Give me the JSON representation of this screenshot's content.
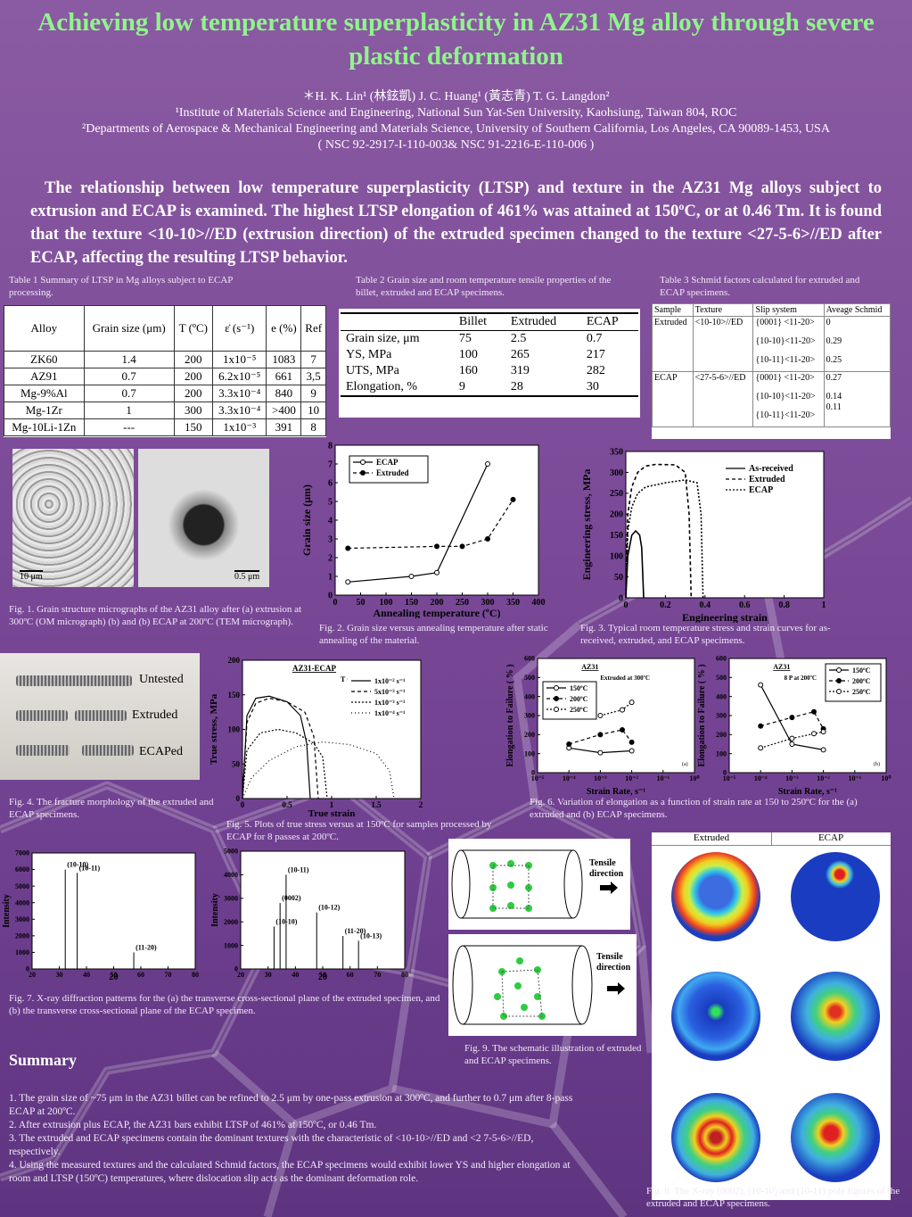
{
  "title": "Achieving low temperature superplasticity in AZ31 Mg alloy through severe plastic deformation",
  "authors": {
    "line": "＊H. K. Lin¹ (林鉉凱)   J. C. Huang¹ (黃志青)   T. G. Langdon²",
    "affil1": "¹Institute of Materials Science and Engineering, National Sun Yat-Sen University, Kaohsiung, Taiwan 804, ROC",
    "affil2": "²Departments of Aerospace & Mechanical Engineering and Materials Science, University of Southern California, Los Angeles, CA 90089-1453, USA",
    "grant": "( NSC 92-2917-I-110-003& NSC 91-2216-E-110-006 )"
  },
  "abstract": "The relationship between low temperature superplasticity (LTSP) and texture in the AZ31 Mg alloys subject to extrusion and ECAP is examined. The highest LTSP elongation of 461% was attained at 150ºC, or at 0.46 Tm. It is found that the texture <10-10>//ED (extrusion direction) of the extruded specimen changed to the texture <27-5-6>//ED after ECAP, affecting the resulting LTSP behavior.",
  "table1": {
    "caption": "Table 1  Summary of LTSP in Mg alloys subject to ECAP processing.",
    "headers": [
      "Alloy",
      "Grain size (μm)",
      "T (ºC)",
      "ε̇ (s⁻¹)",
      "e (%)",
      "Ref"
    ],
    "rows": [
      [
        "ZK60",
        "1.4",
        "200",
        "1x10⁻⁵",
        "1083",
        "7"
      ],
      [
        "AZ91",
        "0.7",
        "200",
        "6.2x10⁻⁵",
        "661",
        "3,5"
      ],
      [
        "Mg-9%Al",
        "0.7",
        "200",
        "3.3x10⁻⁴",
        "840",
        "9"
      ],
      [
        "Mg-1Zr",
        "1",
        "300",
        "3.3x10⁻⁴",
        ">400",
        "10"
      ],
      [
        "Mg-10Li-1Zn",
        "---",
        "150",
        "1x10⁻³",
        "391",
        "8"
      ]
    ]
  },
  "table2": {
    "caption": "Table 2   Grain size and room temperature tensile properties of the billet, extruded and ECAP specimens.",
    "headers": [
      "",
      "Billet",
      "Extruded",
      "ECAP"
    ],
    "rows": [
      [
        "Grain size, μm",
        "75",
        "2.5",
        "0.7"
      ],
      [
        "YS, MPa",
        "100",
        "265",
        "217"
      ],
      [
        "UTS, MPa",
        "160",
        "319",
        "282"
      ],
      [
        "Elongation, %",
        "9",
        "28",
        "30"
      ]
    ]
  },
  "table3": {
    "caption": "Table 3  Schmid factors calculated for extruded and ECAP specimens.",
    "headers": [
      "Sample",
      "Texture",
      "Slip system",
      "Aveage Schmid"
    ],
    "rows": [
      {
        "sample": "Extruded",
        "texture": "<10-10>//ED",
        "slips": [
          "{0001} <11-20>",
          "{10-10}<11-20>",
          "{10-11}<11-20>"
        ],
        "values": [
          "0",
          "0.29",
          "0.25"
        ]
      },
      {
        "sample": "ECAP",
        "texture": "<27-5-6>//ED",
        "slips": [
          "{0001} <11-20>",
          "{10-10}<11-20>",
          "{10-11}<11-20>"
        ],
        "values": [
          "0.27",
          "0.14",
          "0.11"
        ]
      }
    ]
  },
  "fig1": {
    "caption": "Fig. 1.  Grain structure micrographs of the AZ31 alloy after (a) extrusion at 300ºC (OM micrograph) (b) and (b) ECAP at 200ºC (TEM micrograph).",
    "scale_a": "10 μm",
    "scale_b": "0.5 μm"
  },
  "chart_data": [
    {
      "type": "line",
      "id": "fig2",
      "xlabel": "Annealing temperature (ºC)",
      "ylabel": "Grain size (μm)",
      "xlim": [
        0,
        400
      ],
      "ylim": [
        0,
        8
      ],
      "xticks": [
        0,
        50,
        100,
        150,
        200,
        250,
        300,
        350,
        400
      ],
      "yticks": [
        0,
        1,
        2,
        3,
        4,
        5,
        6,
        7,
        8
      ],
      "legend": "top-left",
      "series": [
        {
          "name": "ECAP",
          "x": [
            25,
            150,
            200,
            300
          ],
          "y": [
            0.7,
            1.0,
            1.2,
            7.0
          ]
        },
        {
          "name": "Extruded",
          "x": [
            25,
            200,
            250,
            300,
            350
          ],
          "y": [
            2.5,
            2.6,
            2.6,
            3.0,
            5.1
          ]
        }
      ]
    },
    {
      "type": "line",
      "id": "fig3",
      "xlabel": "Engineering strain",
      "ylabel": "Engineering stress, MPa",
      "xlim": [
        0,
        1
      ],
      "ylim": [
        0,
        350
      ],
      "xticks": [
        0,
        0.2,
        0.4,
        0.6,
        0.8,
        1
      ],
      "xtick_labels": [
        "0",
        "0.2",
        "0.4",
        "0.6",
        "0.8",
        "1"
      ],
      "yticks": [
        0,
        50,
        100,
        150,
        200,
        250,
        300,
        350
      ],
      "legend": "top-right",
      "series": [
        {
          "name": "As-received",
          "x": [
            0,
            0.01,
            0.03,
            0.05,
            0.07,
            0.08,
            0.09
          ],
          "y": [
            0,
            100,
            150,
            160,
            150,
            120,
            0
          ]
        },
        {
          "name": "Extruded",
          "x": [
            0,
            0.01,
            0.03,
            0.06,
            0.1,
            0.15,
            0.25,
            0.3,
            0.32,
            0.33
          ],
          "y": [
            0,
            200,
            265,
            300,
            315,
            319,
            318,
            300,
            200,
            0
          ]
        },
        {
          "name": "ECAP",
          "x": [
            0,
            0.01,
            0.03,
            0.06,
            0.1,
            0.2,
            0.3,
            0.36,
            0.38,
            0.39
          ],
          "y": [
            0,
            160,
            217,
            250,
            265,
            275,
            282,
            275,
            200,
            0
          ]
        }
      ]
    },
    {
      "type": "line",
      "id": "fig5",
      "title": "AZ31-ECAP",
      "annotation": "T = 150ºC",
      "xlabel": "True strain",
      "ylabel": "True stress, MPa",
      "xlim": [
        0,
        2
      ],
      "ylim": [
        0,
        200
      ],
      "xticks": [
        0,
        0.5,
        1,
        1.5,
        2
      ],
      "xtick_labels": [
        "0",
        "0.5",
        "1",
        "1.5",
        "2"
      ],
      "yticks": [
        0,
        50,
        100,
        150,
        200
      ],
      "legend": "top-right",
      "series": [
        {
          "name": "1x10⁻² s⁻¹",
          "x": [
            0,
            0.05,
            0.15,
            0.3,
            0.5,
            0.65,
            0.72,
            0.76
          ],
          "y": [
            0,
            120,
            145,
            148,
            140,
            120,
            80,
            0
          ]
        },
        {
          "name": "5x10⁻³ s⁻¹",
          "x": [
            0,
            0.05,
            0.15,
            0.3,
            0.5,
            0.7,
            0.8,
            0.85
          ],
          "y": [
            0,
            110,
            138,
            145,
            140,
            125,
            90,
            0
          ]
        },
        {
          "name": "1x10⁻³ s⁻¹",
          "x": [
            0,
            0.05,
            0.2,
            0.4,
            0.6,
            0.8,
            0.9,
            0.95
          ],
          "y": [
            0,
            70,
            95,
            100,
            95,
            80,
            60,
            0
          ]
        },
        {
          "name": "1x10⁻⁴ s⁻¹",
          "x": [
            0,
            0.1,
            0.3,
            0.6,
            0.9,
            1.2,
            1.5,
            1.65,
            1.7
          ],
          "y": [
            0,
            30,
            55,
            75,
            82,
            78,
            65,
            40,
            0
          ]
        }
      ]
    },
    {
      "type": "line",
      "id": "fig6a",
      "title": "AZ31",
      "annotation": "Extruded at 300ºC",
      "panel": "(a)",
      "xlabel": "Strain Rate, s⁻¹",
      "ylabel": "Elongation to Failure ( % )",
      "xscale": "log",
      "xlim": [
        1e-05,
        1
      ],
      "ylim": [
        0,
        600
      ],
      "xticks": [
        1e-05,
        0.0001,
        0.001,
        0.01,
        0.1,
        1
      ],
      "xtick_labels": [
        "10⁻⁵",
        "10⁻⁴",
        "10⁻³",
        "10⁻²",
        "10⁻¹",
        "10⁰"
      ],
      "yticks": [
        0,
        100,
        200,
        300,
        400,
        500,
        600
      ],
      "legend": "top-left",
      "series": [
        {
          "name": "150ºC",
          "x": [
            0.0001,
            0.001,
            0.01
          ],
          "y": [
            130,
            105,
            115
          ]
        },
        {
          "name": "200ºC",
          "x": [
            0.0001,
            0.001,
            0.005,
            0.01
          ],
          "y": [
            150,
            200,
            225,
            160
          ]
        },
        {
          "name": "250ºC",
          "x": [
            0.001,
            0.005,
            0.01
          ],
          "y": [
            300,
            330,
            370
          ]
        }
      ]
    },
    {
      "type": "line",
      "id": "fig6b",
      "title": "AZ31",
      "annotation": "8 P at 200ºC",
      "panel": "(b)",
      "xlabel": "Strain Rate, s⁻¹",
      "ylabel": "Elongation to Failure ( % )",
      "xscale": "log",
      "xlim": [
        1e-05,
        1
      ],
      "ylim": [
        0,
        600
      ],
      "xticks": [
        1e-05,
        0.0001,
        0.001,
        0.01,
        0.1,
        1
      ],
      "xtick_labels": [
        "10⁻⁵",
        "10⁻⁴",
        "10⁻³",
        "10⁻²",
        "10⁻¹",
        "10⁰"
      ],
      "yticks": [
        0,
        100,
        200,
        300,
        400,
        500,
        600
      ],
      "legend": "top-right",
      "series": [
        {
          "name": "150ºC",
          "x": [
            0.0001,
            0.001,
            0.01
          ],
          "y": [
            461,
            150,
            120
          ]
        },
        {
          "name": "200ºC",
          "x": [
            0.0001,
            0.001,
            0.005,
            0.01
          ],
          "y": [
            245,
            290,
            320,
            230
          ]
        },
        {
          "name": "250ºC",
          "x": [
            0.0001,
            0.001,
            0.005,
            0.01
          ],
          "y": [
            130,
            180,
            205,
            215
          ]
        }
      ]
    },
    {
      "type": "line",
      "id": "fig7a",
      "xlabel": "2θ",
      "ylabel": "Intensity",
      "xlim": [
        20,
        80
      ],
      "ylim": [
        0,
        7000
      ],
      "xticks": [
        20,
        30,
        40,
        50,
        60,
        70,
        80
      ],
      "yticks": [
        0,
        1000,
        2000,
        3000,
        4000,
        5000,
        6000,
        7000
      ],
      "peaks": [
        {
          "label": "(10-10)",
          "x": 32.2,
          "y": 6000
        },
        {
          "label": "(10-11)",
          "x": 36.6,
          "y": 5800
        },
        {
          "label": "(11-20)",
          "x": 57.4,
          "y": 1000
        }
      ]
    },
    {
      "type": "line",
      "id": "fig7b",
      "xlabel": "2θ",
      "ylabel": "Intensity",
      "xlim": [
        20,
        80
      ],
      "ylim": [
        0,
        5000
      ],
      "xticks": [
        20,
        30,
        40,
        50,
        60,
        70,
        80
      ],
      "yticks": [
        0,
        1000,
        2000,
        3000,
        4000,
        5000
      ],
      "peaks": [
        {
          "label": "(10-10)",
          "x": 32.2,
          "y": 1800
        },
        {
          "label": "(0002)",
          "x": 34.4,
          "y": 2800
        },
        {
          "label": "(10-11)",
          "x": 36.6,
          "y": 4000
        },
        {
          "label": "(10-12)",
          "x": 47.8,
          "y": 2400
        },
        {
          "label": "(11-20)",
          "x": 57.4,
          "y": 1400
        },
        {
          "label": "(10-13)",
          "x": 63.1,
          "y": 1200
        }
      ]
    }
  ],
  "fig2_caption": "Fig. 2.  Grain size versus annealing temperature after static annealing of the material.",
  "fig3_caption": "Fig. 3.  Typical room temperature stress and strain curves for as-received, extruded, and ECAP specimens.",
  "fig4": {
    "caption": "Fig. 4.  The fracture morphology of the extruded and ECAP specimens.",
    "labels": [
      "Untested",
      "Extruded",
      "ECAPed"
    ]
  },
  "fig5_caption": "Fig. 5.  Plots of true stress versus at 150ºC for samples processed by ECAP for 8 passes at 200ºC.",
  "fig6_caption": "Fig. 6.  Variation of elongation as a function of strain rate at 150 to 250ºC for the (a) extruded and (b) ECAP specimens.",
  "fig7_caption": "Fig. 7.  X-ray diffraction patterns for the (a) the transverse cross-sectional plane of the extruded specimen, and (b) the transverse cross-sectional plane of the ECAP specimen.",
  "fig8": {
    "caption": "Fig. 8.  The X-ray (0002), (10-10) and (10-11) pole figures of the extruded and ECAP specimens.",
    "col_headers": [
      "Extruded",
      "ECAP"
    ]
  },
  "fig9": {
    "caption": "Fig. 9. The schematic illustration of extruded and ECAP specimens.",
    "tensile_label": "Tensile direction"
  },
  "summary": {
    "heading": "Summary",
    "items": [
      "1. The grain size of ~75 μm in the AZ31 billet can be refined to 2.5 μm by one-pass extrusion at 300ºC, and further to 0.7 μm after 8-pass ECAP at 200ºC.",
      "2. After extrusion plus ECAP, the AZ31 bars exhibit LTSP of 461% at 150ºC, or 0.46 Tm.",
      "3. The extruded and ECAP specimens contain the dominant textures with the characteristic of <10-10>//ED and <2 7-5-6>//ED, respectively.",
      "4. Using the measured textures and the calculated Schmid factors, the ECAP specimens would exhibit lower YS and higher elongation at room and LTSP (150ºC) temperatures, where dislocation slip acts as the dominant deformation role."
    ]
  }
}
